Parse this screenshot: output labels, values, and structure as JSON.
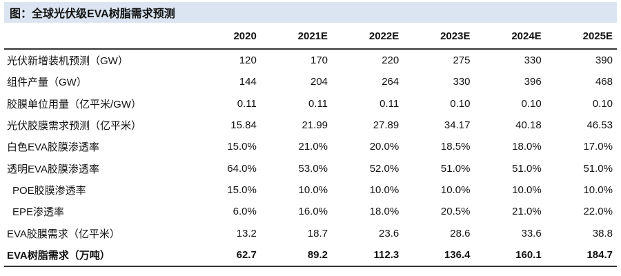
{
  "title": "图：全球光伏级EVA树脂需求预测",
  "columns": [
    "",
    "2020",
    "2021E",
    "2022E",
    "2023E",
    "2024E",
    "2025E"
  ],
  "rows": [
    {
      "label": "光伏新增装机预测（GW）",
      "values": [
        "120",
        "170",
        "220",
        "275",
        "330",
        "390"
      ]
    },
    {
      "label": "组件产量（GW）",
      "values": [
        "144",
        "204",
        "264",
        "330",
        "396",
        "468"
      ]
    },
    {
      "label": "胶膜单位用量（亿平米/GW）",
      "values": [
        "0.11",
        "0.11",
        "0.11",
        "0.10",
        "0.10",
        "0.10"
      ]
    },
    {
      "label": "光伏胶膜需求预测（亿平米）",
      "values": [
        "15.84",
        "21.99",
        "27.89",
        "34.17",
        "40.18",
        "46.53"
      ]
    },
    {
      "label": "白色EVA胶膜渗透率",
      "values": [
        "15.0%",
        "21.0%",
        "20.0%",
        "18.5%",
        "18.0%",
        "17.0%"
      ]
    },
    {
      "label": "透明EVA胶膜渗透率",
      "values": [
        "64.0%",
        "53.0%",
        "52.0%",
        "51.0%",
        "51.0%",
        "51.0%"
      ]
    },
    {
      "label": "POE胶膜渗透率",
      "values": [
        "15.0%",
        "10.0%",
        "10.0%",
        "10.0%",
        "10.0%",
        "10.0%"
      ]
    },
    {
      "label": "EPE渗透率",
      "values": [
        "6.0%",
        "16.0%",
        "18.0%",
        "20.5%",
        "21.0%",
        "22.0%"
      ]
    },
    {
      "label": "EVA胶膜需求（亿平米）",
      "values": [
        "13.2",
        "18.7",
        "23.6",
        "28.6",
        "33.6",
        "38.8"
      ]
    },
    {
      "label": "EVA树脂需求（万吨）",
      "values": [
        "62.7",
        "89.2",
        "112.3",
        "136.4",
        "160.1",
        "184.7"
      ]
    }
  ]
}
